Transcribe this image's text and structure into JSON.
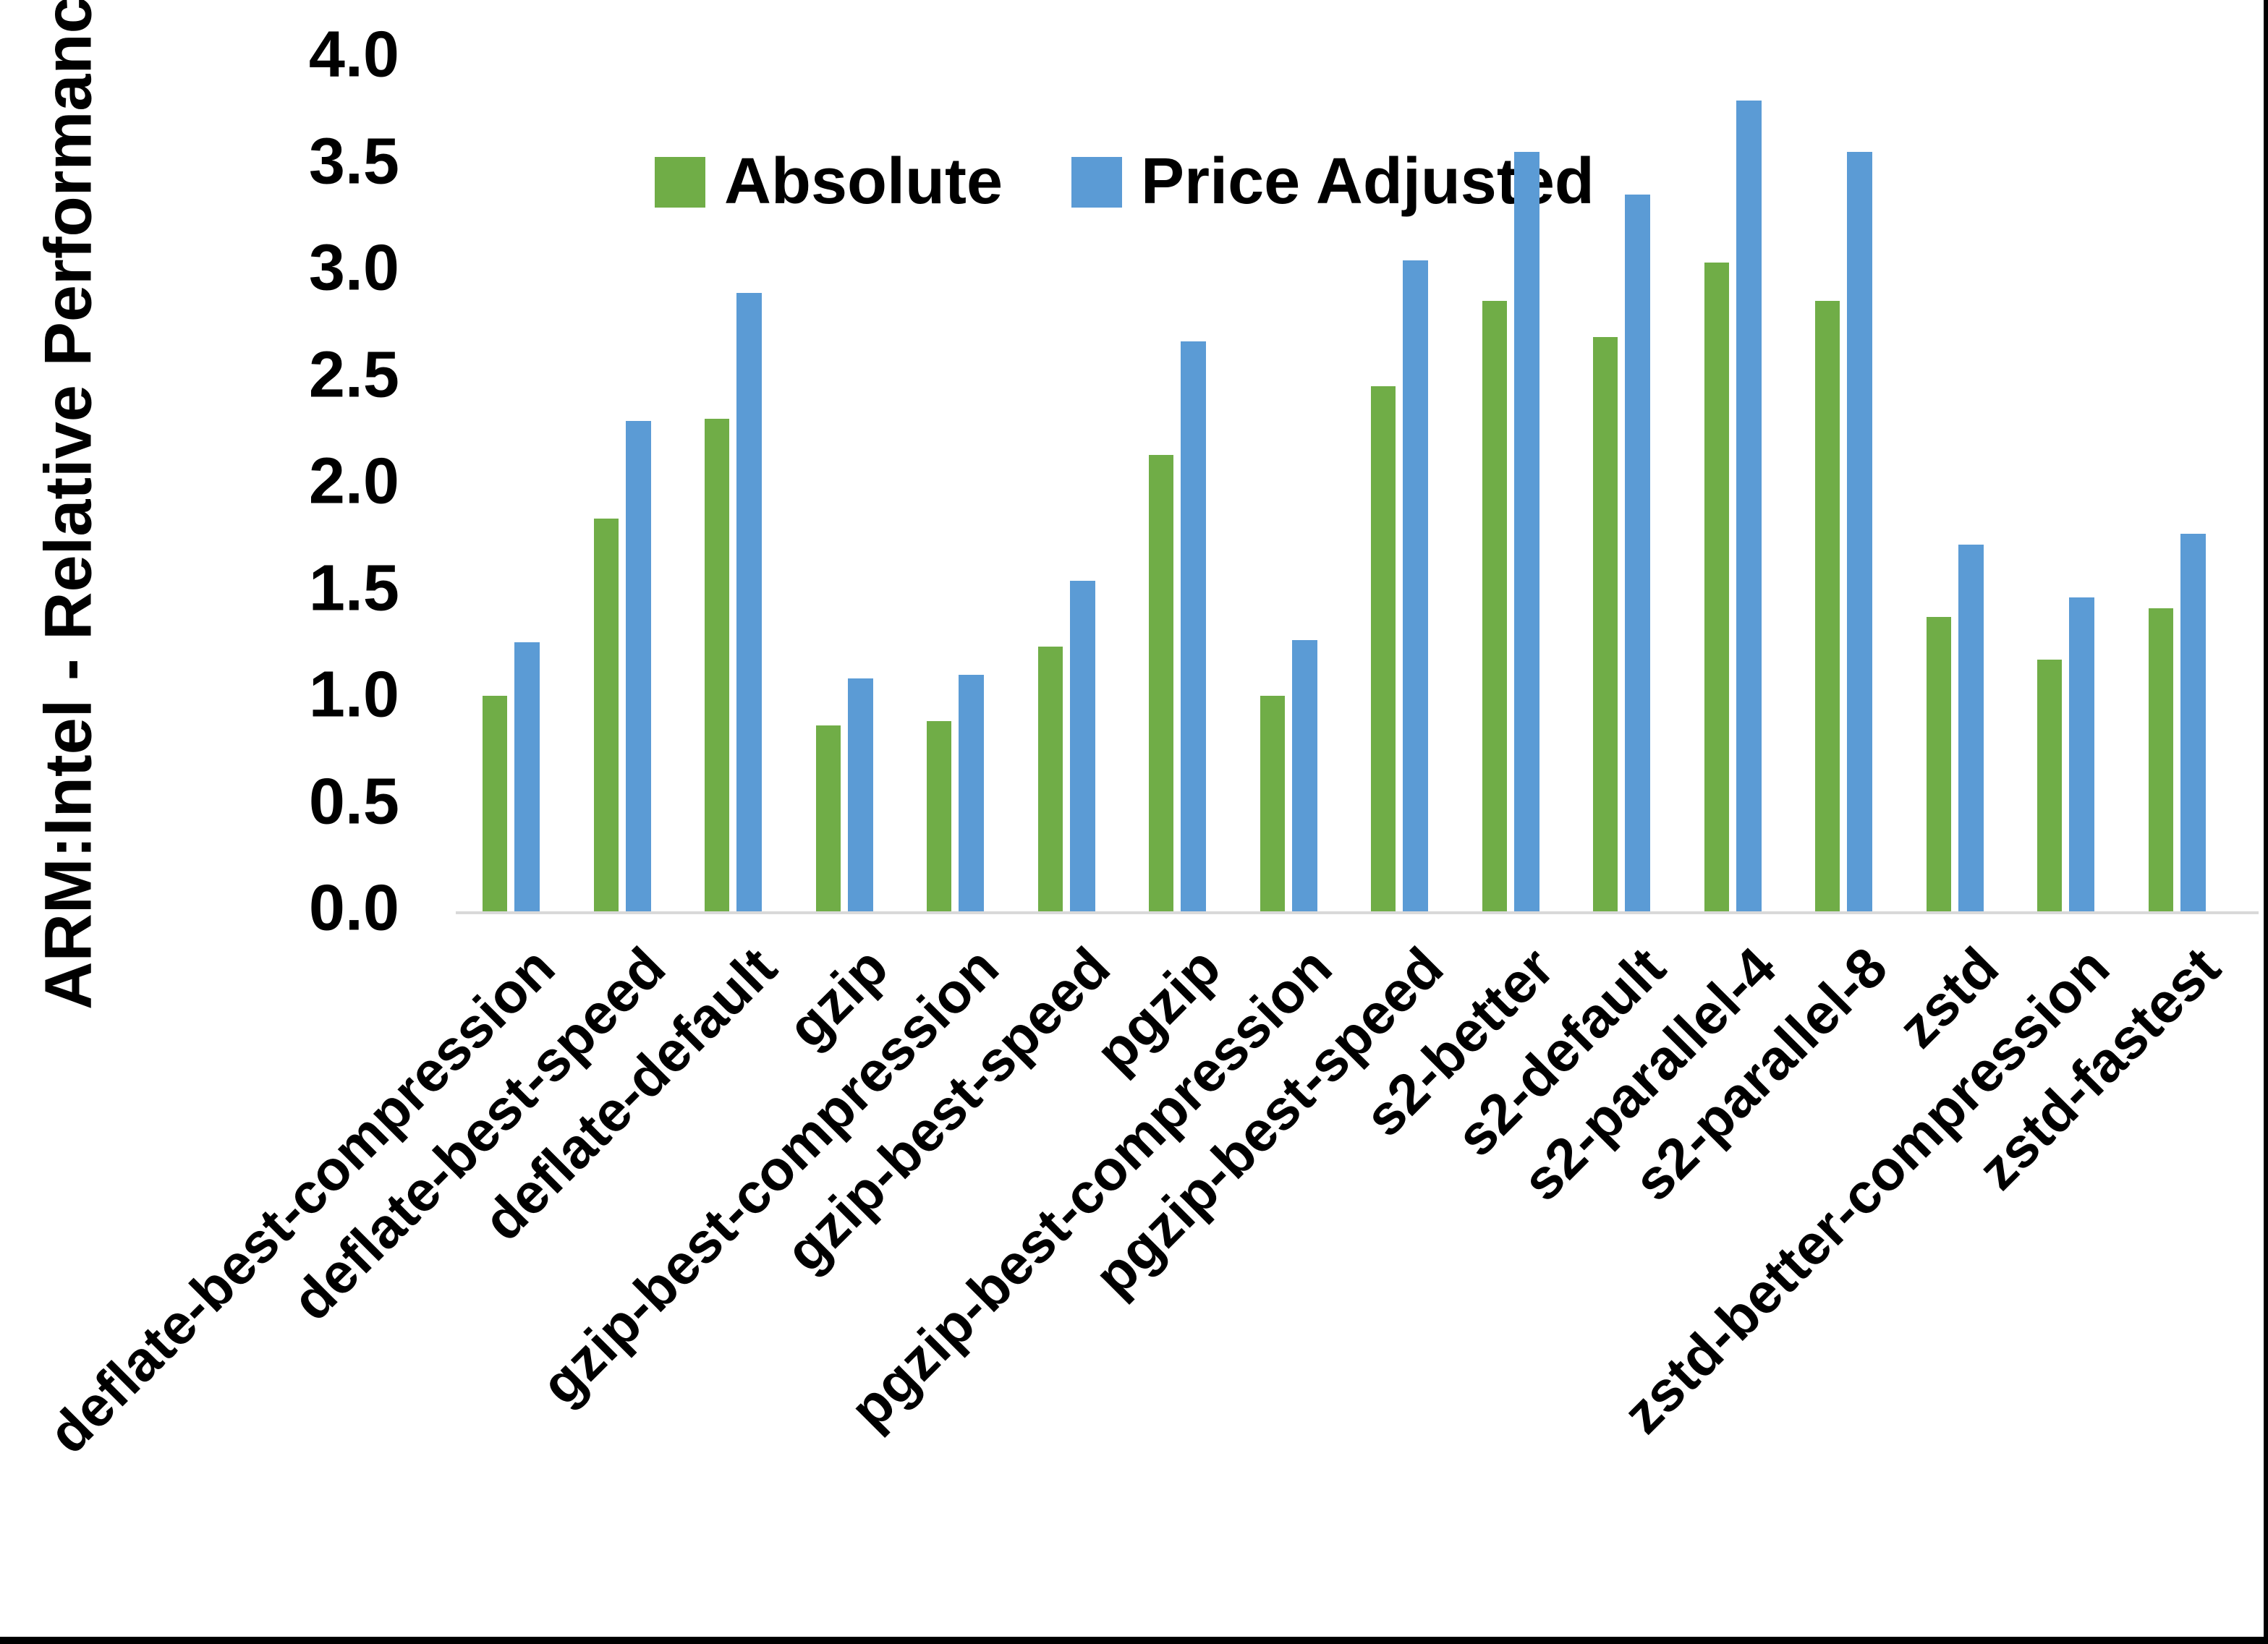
{
  "figure": {
    "y_axis_title": "ARM:Intel - Relative Performance"
  },
  "legend": {
    "items": [
      {
        "label": "Absolute",
        "color": "#70AD47"
      },
      {
        "label": "Price Adjusted",
        "color": "#5B9BD5"
      }
    ]
  },
  "chart_data": {
    "type": "bar",
    "title": "",
    "xlabel": "",
    "ylabel": "ARM:Intel - Relative Performance",
    "ylim": [
      0.0,
      4.0
    ],
    "y_tick_step": 0.5,
    "y_ticks": [
      "0.0",
      "0.5",
      "1.0",
      "1.5",
      "2.0",
      "2.5",
      "3.0",
      "3.5",
      "4.0"
    ],
    "grid": false,
    "legend_position": "top-center",
    "axis_line_color": "#d9d9d9",
    "categories": [
      "deflate-best-compression",
      "deflate-best-speed",
      "deflate-default",
      "gzip",
      "gzip-best-compression",
      "gzip-best-speed",
      "pgzip",
      "pgzip-best-compression",
      "pgzip-best-speed",
      "s2-better",
      "s2-default",
      "s2-parallel-4",
      "s2-parallel-8",
      "zstd",
      "zstd-better-compression",
      "zstd-fastest"
    ],
    "series": [
      {
        "name": "Absolute",
        "color": "#70AD47",
        "values": [
          1.01,
          1.84,
          2.31,
          0.87,
          0.89,
          1.24,
          2.14,
          1.01,
          2.46,
          2.86,
          2.69,
          3.04,
          2.86,
          1.38,
          1.18,
          1.42
        ]
      },
      {
        "name": "Price Adjusted",
        "color": "#5B9BD5",
        "values": [
          1.26,
          2.3,
          2.9,
          1.09,
          1.11,
          1.55,
          2.67,
          1.27,
          3.05,
          3.56,
          3.36,
          3.8,
          3.56,
          1.72,
          1.47,
          1.77
        ]
      }
    ]
  }
}
